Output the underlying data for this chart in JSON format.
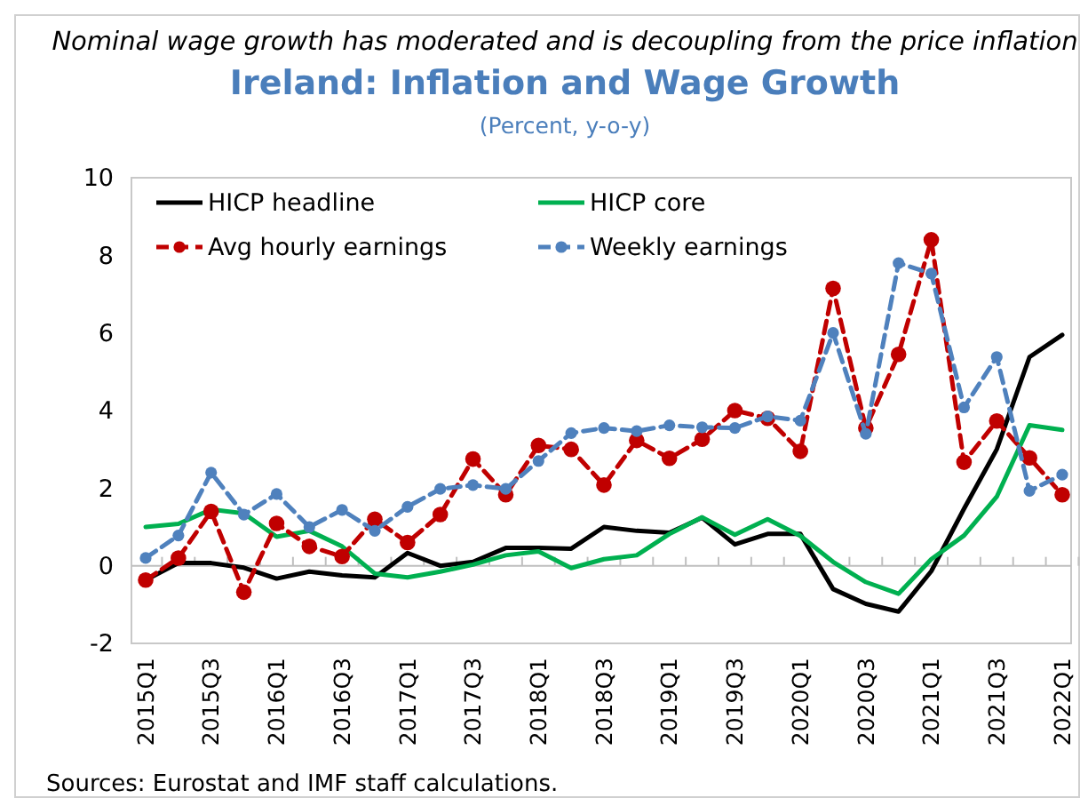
{
  "chart_data": {
    "type": "line",
    "title": "Ireland: Inflation and Wage Growth",
    "subtitle": "(Percent, y-o-y)",
    "annotations": [
      "Nominal wage growth has moderated and is decoupling from the price inflation",
      "Sources: Eurostat and IMF staff calculations."
    ],
    "categories": [
      "2015Q1",
      null,
      "2015Q3",
      null,
      "2016Q1",
      null,
      "2016Q3",
      null,
      "2017Q1",
      null,
      "2017Q3",
      null,
      "2018Q1",
      null,
      "2018Q3",
      null,
      "2019Q1",
      null,
      "2019Q3",
      null,
      "2020Q1",
      null,
      "2020Q3",
      null,
      "2021Q1",
      null,
      "2021Q3",
      null,
      "2022Q1"
    ],
    "ylim": [
      -2,
      10
    ],
    "yticks": [
      -2,
      0,
      2,
      4,
      6,
      8,
      10
    ],
    "legend": "top left",
    "series": [
      {
        "name": "HICP headline",
        "color": "#000000",
        "marker": "none",
        "line_style": "solid",
        "values": [
          -0.37,
          0.07,
          0.07,
          -0.05,
          -0.33,
          -0.15,
          -0.25,
          -0.3,
          0.33,
          0,
          0.1,
          0.46,
          0.46,
          0.44,
          1.0,
          0.9,
          0.85,
          1.24,
          0.55,
          0.82,
          0.82,
          -0.6,
          -0.98,
          -1.18,
          -0.14,
          1.47,
          3.0,
          5.38,
          5.95
        ]
      },
      {
        "name": "HICP core",
        "color": "#00b050",
        "marker": "none",
        "line_style": "solid",
        "values": [
          1.0,
          1.08,
          1.45,
          1.35,
          0.75,
          0.9,
          0.5,
          -0.2,
          -0.3,
          -0.15,
          0.03,
          0.27,
          0.37,
          -0.06,
          0.17,
          0.27,
          0.82,
          1.25,
          0.8,
          1.2,
          0.77,
          0.1,
          -0.42,
          -0.72,
          0.17,
          0.78,
          1.78,
          3.62,
          3.5
        ]
      },
      {
        "name": "Avg hourly earnings",
        "color": "#c00000",
        "marker": "circle",
        "line_style": "dashed",
        "values": [
          -0.37,
          0.2,
          1.4,
          -0.68,
          1.09,
          0.5,
          0.24,
          1.2,
          0.6,
          1.32,
          2.75,
          1.83,
          3.1,
          3.0,
          2.08,
          3.23,
          2.77,
          3.26,
          4.0,
          3.8,
          2.95,
          7.15,
          3.55,
          5.45,
          8.4,
          2.67,
          3.73,
          2.78,
          1.83
        ]
      },
      {
        "name": "Weekly earnings",
        "color": "#4f81bd",
        "marker": "circle",
        "line_style": "dashed",
        "values": [
          0.2,
          0.78,
          2.4,
          1.32,
          1.85,
          1.0,
          1.44,
          0.9,
          1.52,
          1.98,
          2.08,
          1.98,
          2.7,
          3.42,
          3.55,
          3.47,
          3.62,
          3.57,
          3.55,
          3.85,
          3.74,
          6.0,
          3.4,
          7.8,
          7.53,
          4.08,
          5.38,
          1.93,
          2.35
        ]
      }
    ]
  }
}
